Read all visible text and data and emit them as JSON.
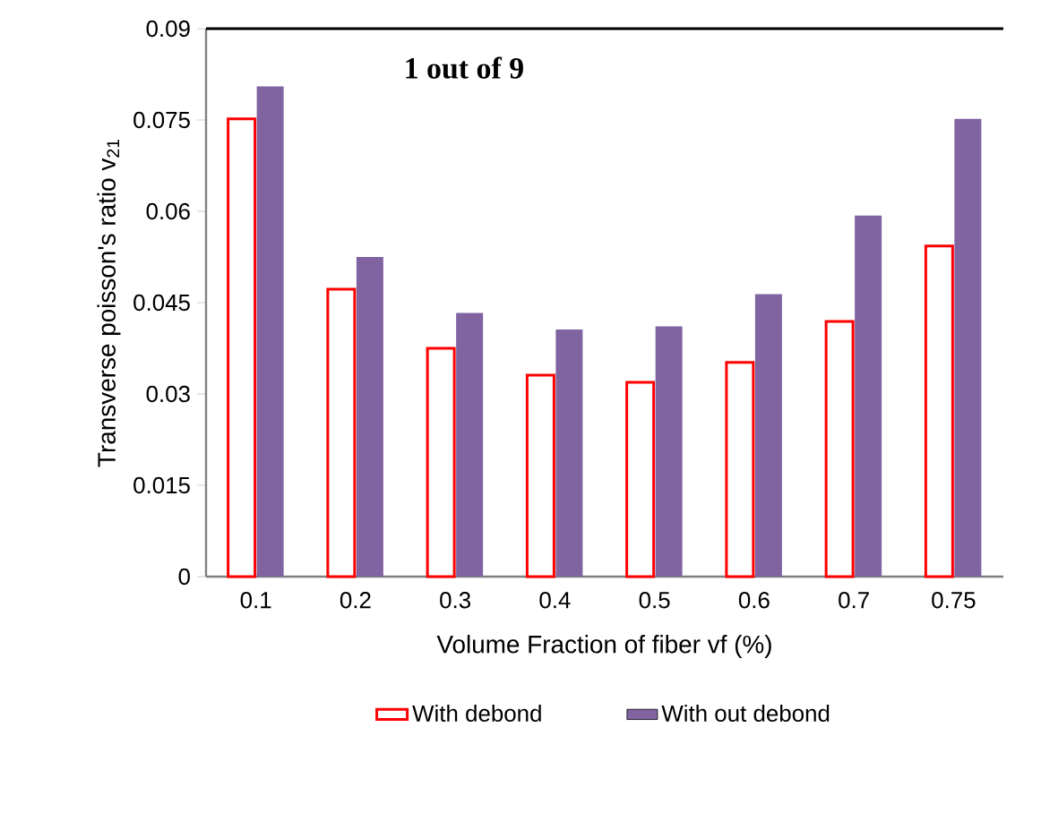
{
  "chart_data": {
    "type": "bar",
    "xlabel": "Volume Fraction of fiber  vf (%)",
    "ylabel": "Transverse poisson's ratio v$_{21}$",
    "categories": [
      "0.1",
      "0.2",
      "0.3",
      "0.4",
      "0.5",
      "0.6",
      "0.7",
      "0.75"
    ],
    "series": [
      {
        "name": "With debond",
        "color": "#ff0000",
        "values": [
          0.0752,
          0.0472,
          0.0375,
          0.0331,
          0.0319,
          0.0352,
          0.0419,
          0.0543
        ]
      },
      {
        "name": "With out debond",
        "color": "#8064a2",
        "values": [
          0.0805,
          0.0525,
          0.0433,
          0.0406,
          0.0411,
          0.0464,
          0.0593,
          0.0752
        ]
      }
    ],
    "ylim": [
      0,
      0.09
    ],
    "yticks": [
      0,
      0.015,
      0.03,
      0.045,
      0.06,
      0.075,
      0.09
    ],
    "annotations": [
      "1 out of 9"
    ],
    "legend": "bottom",
    "grid": false
  }
}
